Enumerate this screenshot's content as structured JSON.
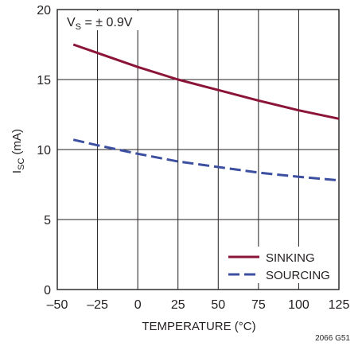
{
  "chart_data": {
    "type": "line",
    "annotation": {
      "prefix": "V",
      "subscript": "S",
      "suffix": " = ± 0.9V"
    },
    "ylabel": {
      "prefix": "I",
      "subscript": "SC",
      "suffix": " (mA)"
    },
    "xlabel": "TEMPERATURE (°C)",
    "figure_id": "2066 G51",
    "xlim": [
      -50,
      125
    ],
    "ylim": [
      0,
      20
    ],
    "xticks": [
      -50,
      -25,
      0,
      25,
      50,
      75,
      100,
      125
    ],
    "xtick_labels": [
      "–50",
      "–25",
      "0",
      "25",
      "50",
      "75",
      "100",
      "125"
    ],
    "yticks": [
      0,
      5,
      10,
      15,
      20
    ],
    "ytick_labels": [
      "0",
      "5",
      "10",
      "15",
      "20"
    ],
    "grid": true,
    "legend_position": "bottom-right",
    "series": [
      {
        "name": "SINKING",
        "color": "#8b1538",
        "dashed": false,
        "x": [
          -40,
          -25,
          0,
          25,
          50,
          75,
          100,
          125
        ],
        "y": [
          17.5,
          16.9,
          15.9,
          15.0,
          14.25,
          13.5,
          12.8,
          12.2
        ]
      },
      {
        "name": "SOURCING",
        "color": "#3c4fa0",
        "dashed": true,
        "x": [
          -40,
          -25,
          0,
          25,
          50,
          75,
          100,
          125
        ],
        "y": [
          10.7,
          10.3,
          9.7,
          9.15,
          8.75,
          8.35,
          8.05,
          7.8
        ]
      }
    ]
  }
}
